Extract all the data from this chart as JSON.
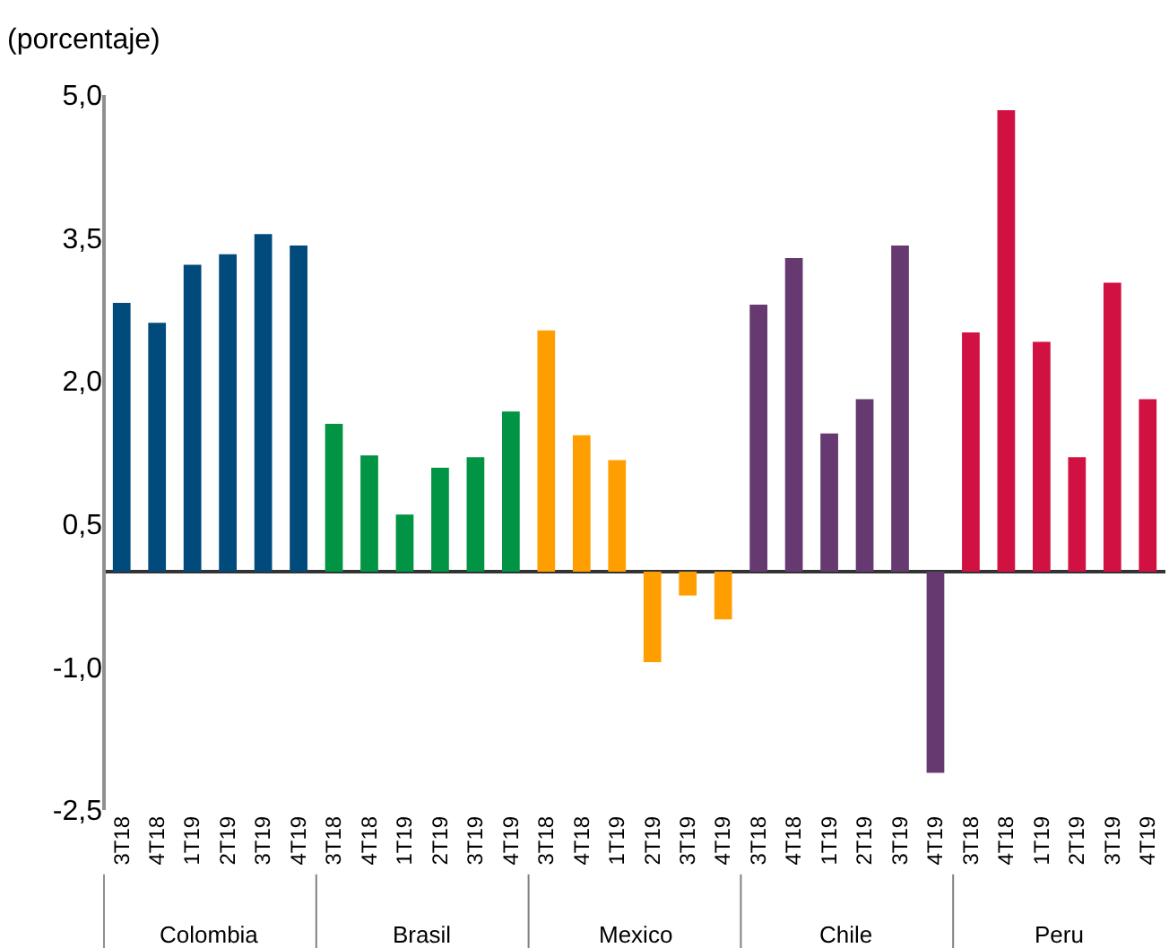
{
  "chart_data": {
    "type": "bar",
    "ylabel": "(porcentaje)",
    "annotations": [
      "Colombia",
      "Brasil",
      "Mexico",
      "Chile",
      "Peru"
    ],
    "categories": [
      "3T18",
      "4T18",
      "1T19",
      "2T19",
      "3T19",
      "4T19",
      "3T18",
      "4T18",
      "1T19",
      "2T19",
      "3T19",
      "4T19",
      "3T18",
      "4T18",
      "1T19",
      "2T19",
      "3T19",
      "4T19",
      "3T18",
      "4T18",
      "1T19",
      "2T19",
      "3T19",
      "4T19",
      "3T18",
      "4T18",
      "1T19",
      "2T19",
      "3T19",
      "4T19"
    ],
    "series": [
      {
        "color": "#004a7c",
        "values": [
          2.82,
          2.61,
          3.22,
          3.33,
          3.54,
          3.42,
          null,
          null,
          null,
          null,
          null,
          null,
          null,
          null,
          null,
          null,
          null,
          null,
          null,
          null,
          null,
          null,
          null,
          null,
          null,
          null,
          null,
          null,
          null,
          null
        ]
      },
      {
        "color": "#009444",
        "values": [
          null,
          null,
          null,
          null,
          null,
          null,
          1.55,
          1.22,
          0.6,
          1.09,
          1.2,
          1.68,
          null,
          null,
          null,
          null,
          null,
          null,
          null,
          null,
          null,
          null,
          null,
          null,
          null,
          null,
          null,
          null,
          null,
          null
        ]
      },
      {
        "color": "#ff9e00",
        "values": [
          null,
          null,
          null,
          null,
          null,
          null,
          null,
          null,
          null,
          null,
          null,
          null,
          2.53,
          1.43,
          1.17,
          -0.95,
          -0.25,
          -0.5,
          null,
          null,
          null,
          null,
          null,
          null,
          null,
          null,
          null,
          null,
          null,
          null
        ]
      },
      {
        "color": "#663a70",
        "values": [
          null,
          null,
          null,
          null,
          null,
          null,
          null,
          null,
          null,
          null,
          null,
          null,
          null,
          null,
          null,
          null,
          null,
          null,
          2.8,
          3.29,
          1.45,
          1.81,
          3.42,
          -2.11,
          null,
          null,
          null,
          null,
          null,
          null
        ]
      },
      {
        "color": "#d11141",
        "values": [
          null,
          null,
          null,
          null,
          null,
          null,
          null,
          null,
          null,
          null,
          null,
          null,
          null,
          null,
          null,
          null,
          null,
          null,
          null,
          null,
          null,
          null,
          null,
          null,
          2.51,
          4.84,
          2.41,
          1.2,
          3.03,
          1.81
        ]
      }
    ],
    "ylim": [
      -2.5,
      5
    ],
    "yticks": [
      {
        "value": 5,
        "label": "5,0"
      },
      {
        "value": 3.5,
        "label": "3,5"
      },
      {
        "value": 2,
        "label": "2,0"
      },
      {
        "value": 0.5,
        "label": "0,5"
      },
      {
        "value": -1,
        "label": "-1,0"
      },
      {
        "value": -2.5,
        "label": "-2,5"
      }
    ],
    "grid": false
  }
}
